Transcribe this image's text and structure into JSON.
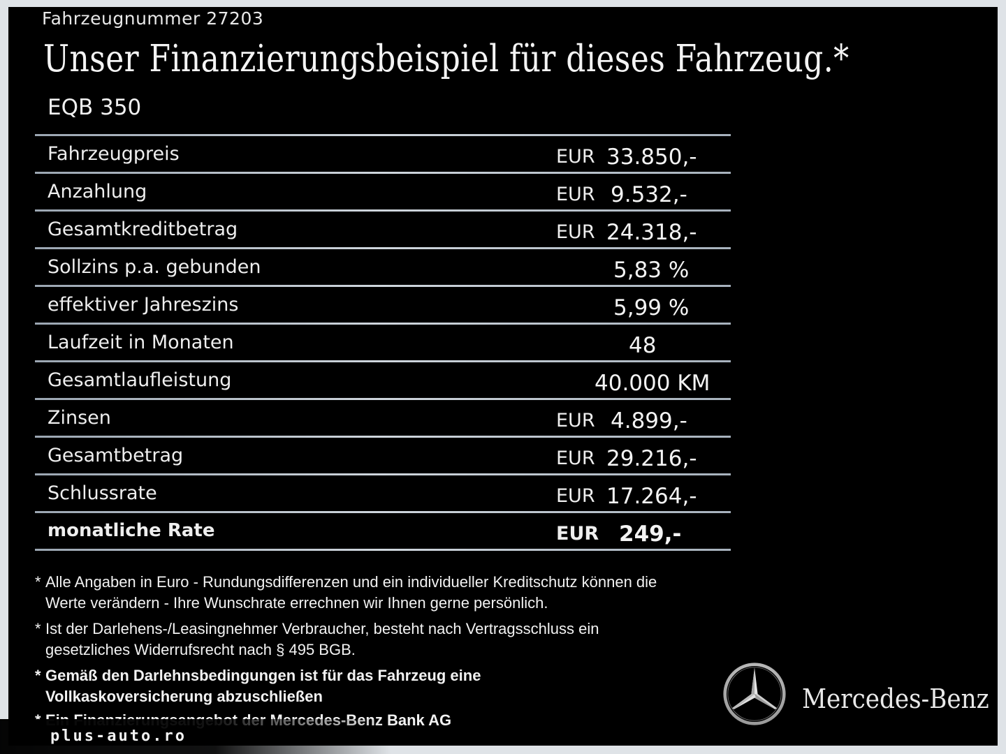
{
  "vehicle_number": "Fahrzeugnummer  27203",
  "headline": "Unser Finanzierungsbeispiel für dieses Fahrzeug.*",
  "model": "EQB 350",
  "rows": [
    {
      "label": "Fahrzeugpreis",
      "currency": "EUR",
      "value": "33.850,-"
    },
    {
      "label": "Anzahlung",
      "currency": "EUR",
      "value": "9.532,-"
    },
    {
      "label": "Gesamtkreditbetrag",
      "currency": "EUR",
      "value": "24.318,-"
    },
    {
      "label": "Sollzins p.a. gebunden",
      "currency": "",
      "value": "5,83 %"
    },
    {
      "label": "effektiver Jahreszins",
      "currency": "",
      "value": "5,99 %"
    },
    {
      "label": "Laufzeit in Monaten",
      "currency": "",
      "value": "48"
    },
    {
      "label": "Gesamtlaufleistung",
      "currency": "",
      "value": "40.000 KM"
    },
    {
      "label": "Zinsen",
      "currency": "EUR",
      "value": "4.899,-"
    },
    {
      "label": "Gesamtbetrag",
      "currency": "EUR",
      "value": "29.216,-"
    },
    {
      "label": "Schlussrate",
      "currency": "EUR",
      "value": "17.264,-"
    },
    {
      "label": "monatliche Rate",
      "currency": "EUR",
      "value": "249,-"
    }
  ],
  "footnotes": [
    {
      "star": "*",
      "line1": "Alle Angaben in Euro - Rundungsdifferenzen und ein individueller Kreditschutz können die",
      "line2": "Werte verändern - Ihre Wunschrate errechnen wir Ihnen gerne persönlich."
    },
    {
      "star": "*",
      "line1": "Ist der Darlehens-/Leasingnehmer Verbraucher, besteht nach Vertragsschluss ein",
      "line2": "gesetzliches  Widerrufsrecht nach § 495 BGB."
    },
    {
      "star": "*",
      "line1": "Gemäß den Darlehnsbedingungen ist für das Fahrzeug eine",
      "line2": "Vollkaskoversicherung abzuschließen"
    },
    {
      "star": "*",
      "line1": "Ein Finanzierungsangebot der Mercedes-Benz Bank AG",
      "line2": ""
    }
  ],
  "brand": {
    "name": "Mercedes-Benz",
    "logo_icon": "mercedes-star-icon"
  },
  "watermark": "plus-auto.ro",
  "colors": {
    "background": "#000000",
    "frame": "#dfe3e7",
    "text": "#ffffff",
    "rule": "#b8c1ca"
  }
}
